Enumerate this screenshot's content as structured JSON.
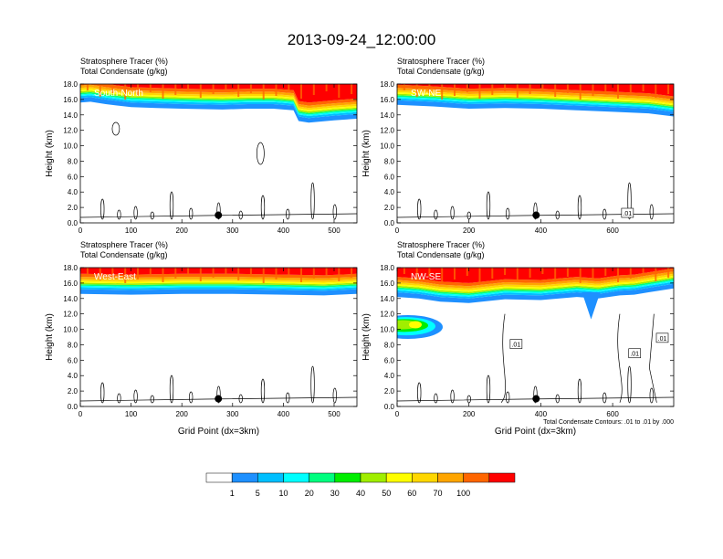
{
  "figure": {
    "title": "2013-09-24_12:00:00",
    "contour_note": "Total Condensate Contours: .01 to .01 by .000"
  },
  "chart_data": [
    {
      "type": "contour",
      "panel_label": "South-North",
      "subtitle_line1": "Stratosphere Tracer   (%)",
      "subtitle_line2": "Total Condensate   (g/kg)",
      "xlabel": "",
      "ylabel": "Height (km)",
      "xlim": [
        0,
        545
      ],
      "ylim": [
        0,
        18
      ],
      "xticks": [
        0,
        100,
        200,
        300,
        400,
        500
      ],
      "yticks": [
        0,
        2,
        4,
        6,
        8,
        10,
        12,
        14,
        16,
        18
      ],
      "ytick_labels": [
        "0.0",
        "2.0",
        "4.0",
        "6.0",
        "8.0",
        "10.0",
        "12.0",
        "14.0",
        "16.0",
        "18.0"
      ],
      "tracer_base_km": [
        [
          0,
          15.6
        ],
        [
          20,
          15.7
        ],
        [
          50,
          15.4
        ],
        [
          100,
          15.0
        ],
        [
          150,
          14.9
        ],
        [
          200,
          14.8
        ],
        [
          280,
          14.7
        ],
        [
          330,
          14.8
        ],
        [
          380,
          14.8
        ],
        [
          420,
          14.6
        ],
        [
          430,
          13.2
        ],
        [
          450,
          13.0
        ],
        [
          500,
          13.3
        ],
        [
          545,
          13.5
        ]
      ],
      "marker": {
        "x": 272,
        "y_km": 1.0
      },
      "contour_labels": []
    },
    {
      "type": "contour",
      "panel_label": "SW-NE",
      "subtitle_line1": "Stratosphere Tracer   (%)",
      "subtitle_line2": "Total Condensate   (g/kg)",
      "xlabel": "",
      "ylabel": "Height (km)",
      "xlim": [
        0,
        770
      ],
      "ylim": [
        0,
        18
      ],
      "xticks": [
        0,
        200,
        400,
        600
      ],
      "yticks": [
        0,
        2,
        4,
        6,
        8,
        10,
        12,
        14,
        16,
        18
      ],
      "ytick_labels": [
        "0.0",
        "2.0",
        "4.0",
        "6.0",
        "8.0",
        "10.0",
        "12.0",
        "14.0",
        "16.0",
        "18.0"
      ],
      "tracer_base_km": [
        [
          0,
          15.3
        ],
        [
          100,
          15.1
        ],
        [
          200,
          14.8
        ],
        [
          300,
          14.9
        ],
        [
          400,
          14.8
        ],
        [
          500,
          14.6
        ],
        [
          600,
          14.4
        ],
        [
          700,
          14.2
        ],
        [
          770,
          13.8
        ]
      ],
      "marker": {
        "x": 387,
        "y_km": 1.0
      },
      "contour_labels": [
        ".01"
      ]
    },
    {
      "type": "contour",
      "panel_label": "West-East",
      "subtitle_line1": "Stratosphere Tracer   (%)",
      "subtitle_line2": "Total Condensate   (g/kg)",
      "xlabel": "Grid Point (dx=3km)",
      "ylabel": "Height (km)",
      "xlim": [
        0,
        545
      ],
      "ylim": [
        0,
        18
      ],
      "xticks": [
        0,
        100,
        200,
        300,
        400,
        500
      ],
      "yticks": [
        0,
        2,
        4,
        6,
        8,
        10,
        12,
        14,
        16,
        18
      ],
      "ytick_labels": [
        "0.0",
        "2.0",
        "4.0",
        "6.0",
        "8.0",
        "10.0",
        "12.0",
        "14.0",
        "16.0",
        "18.0"
      ],
      "tracer_base_km": [
        [
          0,
          14.6
        ],
        [
          100,
          14.5
        ],
        [
          200,
          14.6
        ],
        [
          300,
          14.6
        ],
        [
          400,
          14.5
        ],
        [
          480,
          14.4
        ],
        [
          545,
          14.6
        ]
      ],
      "marker": {
        "x": 272,
        "y_km": 1.0
      },
      "contour_labels": []
    },
    {
      "type": "contour",
      "panel_label": "NW-SE",
      "subtitle_line1": "Stratosphere Tracer   (%)",
      "subtitle_line2": "Total Condensate   (g/kg)",
      "xlabel": "Grid Point (dx=3km)",
      "ylabel": "Height (km)",
      "xlim": [
        0,
        770
      ],
      "ylim": [
        0,
        18
      ],
      "xticks": [
        0,
        200,
        400,
        600
      ],
      "yticks": [
        0,
        2,
        4,
        6,
        8,
        10,
        12,
        14,
        16,
        18
      ],
      "ytick_labels": [
        "0.0",
        "2.0",
        "4.0",
        "6.0",
        "8.0",
        "10.0",
        "12.0",
        "14.0",
        "16.0",
        "18.0"
      ],
      "tracer_base_km": [
        [
          0,
          14.2
        ],
        [
          60,
          14.0
        ],
        [
          120,
          13.6
        ],
        [
          200,
          13.4
        ],
        [
          300,
          13.9
        ],
        [
          400,
          13.8
        ],
        [
          500,
          14.2
        ],
        [
          560,
          14.0
        ],
        [
          620,
          14.4
        ],
        [
          660,
          14.5
        ],
        [
          700,
          14.8
        ],
        [
          770,
          15.3
        ]
      ],
      "marker": {
        "x": 387,
        "y_km": 1.0
      },
      "contour_labels": [
        ".01",
        ".01",
        ".01"
      ]
    }
  ],
  "colorbar": {
    "labels": [
      "1",
      "5",
      "10",
      "20",
      "30",
      "40",
      "50",
      "60",
      "70",
      "100"
    ],
    "colors": [
      "#ffffff",
      "#1e90ff",
      "#00bfff",
      "#00ffff",
      "#00ff7f",
      "#00ee00",
      "#a0ee00",
      "#ffff00",
      "#ffd700",
      "#ffa500",
      "#ff6600",
      "#ff0000"
    ]
  }
}
